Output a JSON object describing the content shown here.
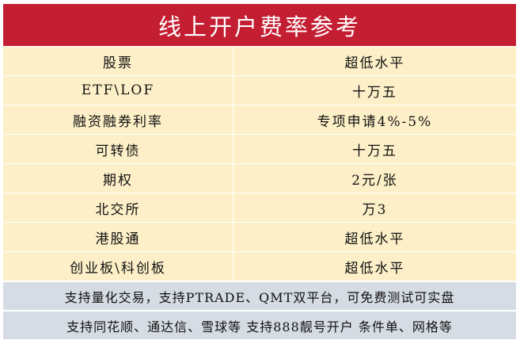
{
  "title": "线上开户费率参考",
  "rows": [
    {
      "item": "股票",
      "value": "超低水平"
    },
    {
      "item": "ETF\\LOF",
      "value": "十万五"
    },
    {
      "item": "融资融券利率",
      "value": "专项申请4%-5%"
    },
    {
      "item": "可转债",
      "value": "十万五"
    },
    {
      "item": "期权",
      "value": "2元/张"
    },
    {
      "item": "北交所",
      "value": "万3"
    },
    {
      "item": "港股通",
      "value": "超低水平"
    },
    {
      "item": "创业板\\科创板",
      "value": "超低水平"
    }
  ],
  "notes": [
    "支持量化交易，支持PTRADE、QMT双平台，可免费测试可实盘",
    "支持同花顺、通达信、雪球等 支持888靓号开户 条件单、网格等"
  ],
  "colors": {
    "header": "#c41e32",
    "row": "#fdf0c8",
    "note": "#d6dce4"
  }
}
